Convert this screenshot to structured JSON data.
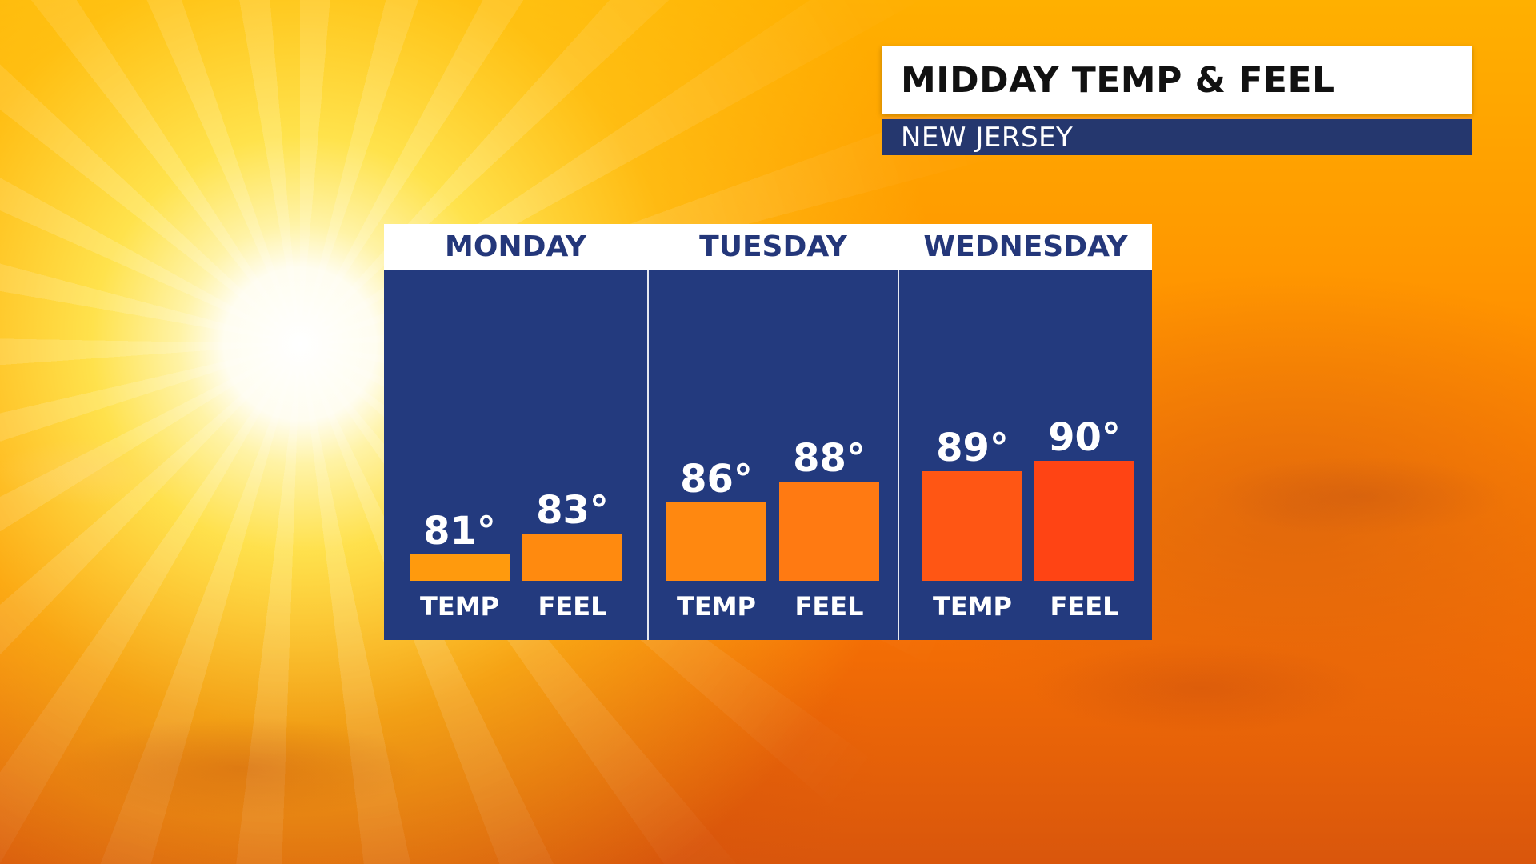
{
  "header": {
    "title": "MIDDAY TEMP & FEEL",
    "subtitle": "NEW JERSEY"
  },
  "colors": {
    "panel": "#233a7e",
    "title_bg": "#ffffff",
    "subtitle_bg": "#25376e",
    "accent_line": "#f59a1d",
    "day_text": "#24377a"
  },
  "chart_data": {
    "type": "bar",
    "days": [
      {
        "name": "MONDAY",
        "bars": [
          {
            "category": "TEMP",
            "value": 81,
            "label": "81°",
            "color": "#ff9a0d"
          },
          {
            "category": "FEEL",
            "value": 83,
            "label": "83°",
            "color": "#ff8a0f"
          }
        ]
      },
      {
        "name": "TUESDAY",
        "bars": [
          {
            "category": "TEMP",
            "value": 86,
            "label": "86°",
            "color": "#ff8810"
          },
          {
            "category": "FEEL",
            "value": 88,
            "label": "88°",
            "color": "#ff7a12"
          }
        ]
      },
      {
        "name": "WEDNESDAY",
        "bars": [
          {
            "category": "TEMP",
            "value": 89,
            "label": "89°",
            "color": "#ff5614"
          },
          {
            "category": "FEEL",
            "value": 90,
            "label": "90°",
            "color": "#ff4414"
          }
        ]
      }
    ],
    "baseline": 78.5,
    "grid": false,
    "legend": "none"
  }
}
